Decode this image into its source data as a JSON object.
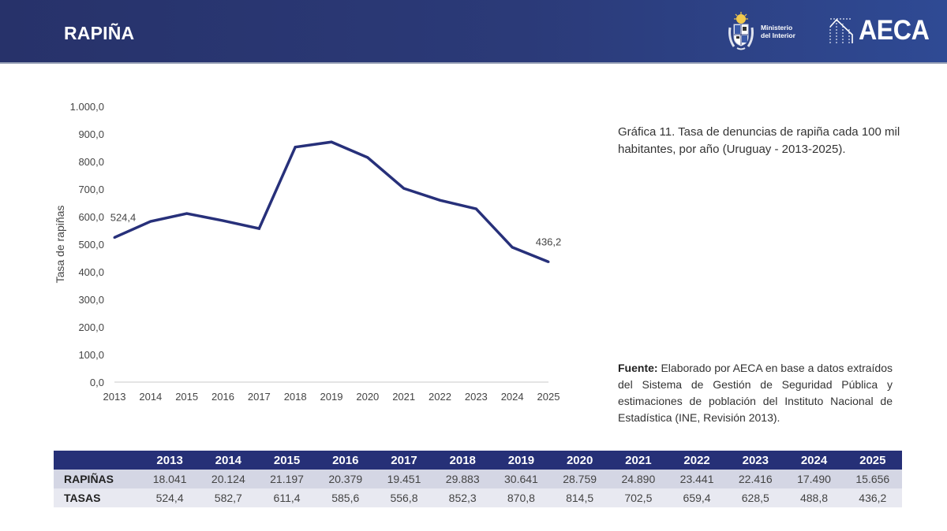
{
  "header": {
    "title": "RAPIÑA",
    "logos": {
      "ministerio": {
        "icon": "uruguay-coat-of-arms-icon",
        "line1": "Ministerio",
        "line2": "del Interior"
      },
      "aeca": {
        "icon": "aeca-building-icon",
        "text": "AECA"
      }
    },
    "colors": {
      "header_bg": "#2b3a78",
      "accent": "#263077"
    }
  },
  "caption": "Gráfica 11. Tasa de denuncias de rapiña cada 100 mil habitantes, por año (Uruguay - 2013-2025).",
  "source": {
    "label": "Fuente:",
    "text": " Elaborado por AECA en base a datos extraídos del Sistema de Gestión de Seguridad Pública y estimaciones de población del Instituto Nacional de Estadística (INE, Revisión 2013)."
  },
  "chart_data": {
    "type": "line",
    "title": "",
    "xlabel": "",
    "ylabel": "Tasa de rapiñas",
    "x": [
      "2013",
      "2014",
      "2015",
      "2016",
      "2017",
      "2018",
      "2019",
      "2020",
      "2021",
      "2022",
      "2023",
      "2024",
      "2025"
    ],
    "series": [
      {
        "name": "Tasa",
        "color": "#27307a",
        "values": [
          524.4,
          582.7,
          611.4,
          585.6,
          556.8,
          852.3,
          870.8,
          814.5,
          702.5,
          659.4,
          628.5,
          488.8,
          436.2
        ]
      }
    ],
    "ylim": [
      0,
      1000
    ],
    "yticks": [
      "0,0",
      "100,0",
      "200,0",
      "300,0",
      "400,0",
      "500,0",
      "600,0",
      "700,0",
      "800,0",
      "900,0",
      "1.000,0"
    ],
    "data_labels": [
      {
        "index": 0,
        "text": "524,4"
      },
      {
        "index": 12,
        "text": "436,2"
      }
    ],
    "grid": false,
    "legend": "none"
  },
  "table": {
    "headers": [
      "",
      "2013",
      "2014",
      "2015",
      "2016",
      "2017",
      "2018",
      "2019",
      "2020",
      "2021",
      "2022",
      "2023",
      "2024",
      "2025"
    ],
    "rows": [
      {
        "label": "RAPIÑAS",
        "values": [
          "18.041",
          "20.124",
          "21.197",
          "20.379",
          "19.451",
          "29.883",
          "30.641",
          "28.759",
          "24.890",
          "23.441",
          "22.416",
          "17.490",
          "15.656"
        ]
      },
      {
        "label": "TASAS",
        "values": [
          "524,4",
          "582,7",
          "611,4",
          "585,6",
          "556,8",
          "852,3",
          "870,8",
          "814,5",
          "702,5",
          "659,4",
          "628,5",
          "488,8",
          "436,2"
        ]
      }
    ]
  }
}
